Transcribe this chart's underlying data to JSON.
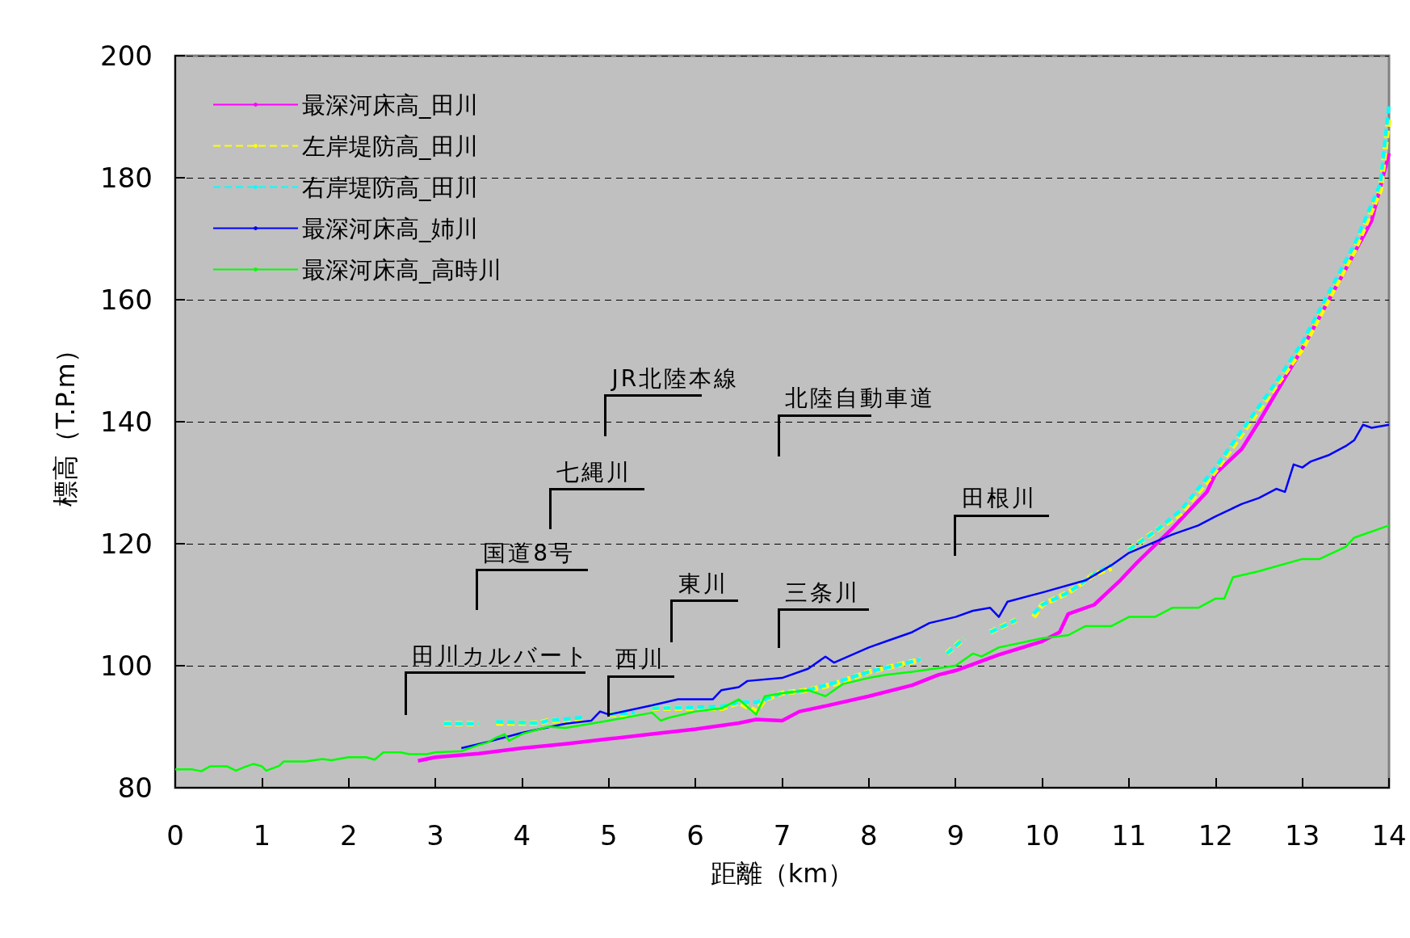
{
  "chart_data": {
    "type": "line",
    "xlabel": "距離（km）",
    "ylabel": "標高（T.P.m）",
    "xlim": [
      0,
      14
    ],
    "xticks": [
      0,
      1,
      2,
      3,
      4,
      5,
      6,
      7,
      8,
      9,
      10,
      11,
      12,
      13,
      14
    ],
    "ylim": [
      80,
      200
    ],
    "yticks": [
      80,
      100,
      120,
      140,
      160,
      180,
      200
    ],
    "grid": "y",
    "legend": "top left",
    "marker": "none",
    "series": [
      {
        "name": "最深河床高_田川",
        "color": "#ff00ff",
        "line_style": "solid",
        "x": [
          2.8,
          3.0,
          3.5,
          4.0,
          4.5,
          5.0,
          5.5,
          6.0,
          6.5,
          6.7,
          7.0,
          7.2,
          7.5,
          8.0,
          8.5,
          8.8,
          9.0,
          9.5,
          10.0,
          10.2,
          10.3,
          10.6,
          10.9,
          11.1,
          11.5,
          11.9,
          12.0,
          12.3,
          12.5,
          13.0,
          13.5,
          13.8,
          14.0
        ],
        "values": [
          84.4,
          85,
          85.6,
          86.5,
          87.2,
          88,
          88.8,
          89.6,
          90.6,
          91.2,
          91,
          92.5,
          93.4,
          95,
          96.8,
          98.5,
          99.2,
          101.8,
          104,
          105.5,
          108.5,
          110,
          114,
          117,
          122.5,
          128.5,
          131.5,
          135.5,
          140,
          152,
          165,
          173,
          184
        ]
      },
      {
        "name": "左岸堤防高_田川",
        "color": "#ffff00",
        "line_style": "dashed",
        "x": [
          3.1,
          3.5,
          3.6,
          3.7,
          4.2,
          4.3,
          4.7,
          4.8,
          5.0,
          5.3,
          5.4,
          5.5,
          6.3,
          6.5,
          6.7,
          6.8,
          7.0,
          7.3,
          7.6,
          8.0,
          8.3,
          8.6,
          8.7,
          8.9,
          9.1,
          9.2,
          9.4,
          9.7,
          9.8,
          9.9,
          10.0,
          10.3,
          10.6,
          10.8,
          10.9,
          11.0,
          11.3,
          11.6,
          12.0,
          12.3,
          12.7,
          13.0,
          13.3,
          13.6,
          13.9,
          14.0
        ],
        "values": [
          90.5,
          90.5,
          null,
          90.6,
          90.6,
          91,
          91,
          null,
          92,
          92,
          null,
          93,
          93,
          94,
          92.5,
          94.5,
          95.5,
          96,
          97,
          99,
          100,
          101,
          null,
          102,
          104.5,
          null,
          105.5,
          107.5,
          null,
          108,
          110,
          112,
          115,
          116,
          null,
          119,
          122,
          125,
          132,
          138,
          146,
          152,
          160,
          168,
          178,
          190
        ]
      },
      {
        "name": "右岸堤防高_田川",
        "color": "#00ffff",
        "line_style": "dashed",
        "x": [
          3.1,
          3.5,
          3.6,
          3.7,
          4.2,
          4.3,
          4.7,
          4.8,
          5.0,
          5.3,
          5.4,
          5.5,
          6.3,
          6.5,
          6.7,
          6.8,
          7.0,
          7.3,
          7.6,
          8.0,
          8.3,
          8.6,
          8.7,
          8.9,
          9.1,
          9.2,
          9.4,
          9.7,
          9.8,
          9.9,
          10.0,
          10.3,
          10.6,
          10.8,
          10.9,
          11.0,
          11.3,
          11.6,
          12.0,
          12.3,
          12.7,
          13.0,
          13.3,
          13.6,
          13.9,
          14.0
        ],
        "values": [
          90.5,
          90.5,
          null,
          90.8,
          90.6,
          91,
          91.5,
          null,
          92,
          92.3,
          null,
          93,
          93.3,
          94,
          94,
          94.5,
          95.5,
          96,
          97.2,
          99,
          100,
          101,
          null,
          102,
          104.5,
          null,
          105.5,
          107.5,
          null,
          108.5,
          110,
          112,
          115,
          116.5,
          null,
          119,
          122,
          125.5,
          132.5,
          138.5,
          146.5,
          153,
          161,
          169,
          179,
          192
        ]
      },
      {
        "name": "最深河床高_姉川",
        "color": "#0000ff",
        "line_style": "solid",
        "x": [
          3.3,
          3.6,
          4.0,
          4.5,
          4.8,
          4.9,
          5.0,
          5.5,
          5.8,
          6.2,
          6.3,
          6.5,
          6.6,
          7.0,
          7.3,
          7.5,
          7.6,
          8.0,
          8.2,
          8.5,
          8.7,
          9.0,
          9.2,
          9.4,
          9.5,
          9.6,
          10.0,
          10.5,
          10.8,
          11.0,
          11.5,
          11.8,
          12.0,
          12.3,
          12.5,
          12.7,
          12.8,
          12.9,
          13.0,
          13.1,
          13.3,
          13.5,
          13.6,
          13.7,
          13.8,
          14.0
        ],
        "values": [
          86.5,
          87.5,
          89,
          90.5,
          91,
          92.5,
          92,
          93.5,
          94.5,
          94.5,
          96,
          96.5,
          97.5,
          98,
          99.5,
          101.5,
          100.5,
          103,
          104,
          105.5,
          107,
          108,
          109,
          109.5,
          108,
          110.5,
          112,
          114,
          116.5,
          118.5,
          121.5,
          123,
          124.5,
          126.5,
          127.5,
          129,
          128.5,
          133,
          132.5,
          133.5,
          134.5,
          136,
          137,
          139.5,
          139,
          139.5
        ]
      },
      {
        "name": "最深河床高_高時川",
        "color": "#00ff00",
        "line_style": "solid",
        "x": [
          0,
          0.2,
          0.3,
          0.4,
          0.6,
          0.7,
          0.8,
          0.9,
          1.0,
          1.05,
          1.2,
          1.25,
          1.5,
          1.7,
          1.8,
          2.0,
          2.2,
          2.3,
          2.4,
          2.6,
          2.7,
          2.9,
          3.0,
          3.3,
          3.4,
          3.5,
          3.6,
          3.7,
          3.8,
          3.85,
          4.0,
          4.3,
          4.5,
          5.0,
          5.5,
          5.6,
          5.7,
          6.0,
          6.3,
          6.5,
          6.7,
          6.8,
          7.0,
          7.3,
          7.5,
          7.7,
          8.0,
          8.2,
          8.5,
          9.0,
          9.2,
          9.3,
          9.5,
          10.0,
          10.3,
          10.5,
          10.8,
          11.0,
          11.3,
          11.5,
          11.8,
          12.0,
          12.1,
          12.2,
          12.5,
          13.0,
          13.2,
          13.5,
          13.6,
          14.0
        ],
        "values": [
          83,
          83,
          82.7,
          83.5,
          83.5,
          82.8,
          83.4,
          83.9,
          83.5,
          82.8,
          83.6,
          84.3,
          84.3,
          84.7,
          84.5,
          85,
          85,
          84.6,
          85.8,
          85.8,
          85.5,
          85.5,
          85.8,
          86,
          86.5,
          87,
          87.4,
          88.2,
          88.8,
          87.7,
          88.8,
          90,
          89.8,
          91,
          92.3,
          91,
          91.5,
          92.5,
          93,
          94.5,
          92,
          95,
          95.5,
          96,
          95,
          97,
          98,
          98.5,
          99,
          100,
          102,
          101.5,
          103,
          104.5,
          105,
          106.5,
          106.5,
          108,
          108,
          109.5,
          109.5,
          111,
          111,
          114.5,
          115.5,
          117.5,
          117.5,
          119.5,
          121,
          123
        ]
      }
    ],
    "annotations": [
      "田川カルバート",
      "国道8号",
      "七縄川",
      "JR北陸本線",
      "北陸自動車道",
      {
        "text": "西川",
        "x": 5.0,
        "y": 91.6
      },
      "東川",
      "三条川",
      "田根川"
    ]
  }
}
